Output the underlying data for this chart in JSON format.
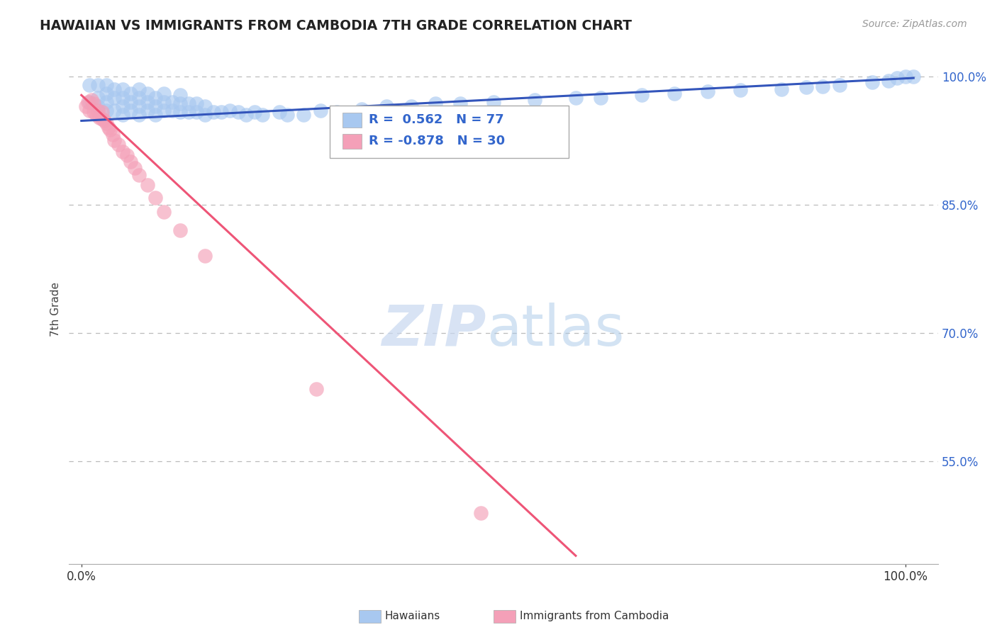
{
  "title": "HAWAIIAN VS IMMIGRANTS FROM CAMBODIA 7TH GRADE CORRELATION CHART",
  "ylabel": "7th Grade",
  "source": "Source: ZipAtlas.com",
  "watermark_zip": "ZIP",
  "watermark_atlas": "atlas",
  "legend_r_blue": "R =  0.562",
  "legend_n_blue": "N = 77",
  "legend_r_pink": "R = -0.878",
  "legend_n_pink": "N = 30",
  "ytick_labels": [
    "55.0%",
    "70.0%",
    "85.0%",
    "100.0%"
  ],
  "ytick_values": [
    0.55,
    0.7,
    0.85,
    1.0
  ],
  "xtick_labels": [
    "0.0%",
    "100.0%"
  ],
  "xtick_values": [
    0.0,
    1.0
  ],
  "blue_color": "#A8C8F0",
  "pink_color": "#F4A0B8",
  "blue_line_color": "#3355BB",
  "pink_line_color": "#EE5577",
  "background_color": "#FFFFFF",
  "grid_color": "#BBBBBB",
  "title_color": "#222222",
  "watermark_zip_color": "#C8D8F0",
  "watermark_atlas_color": "#A8C8E8",
  "legend_text_color": "#3366CC",
  "ytick_color": "#3366CC",
  "blue_scatter_x": [
    0.01,
    0.01,
    0.02,
    0.02,
    0.02,
    0.03,
    0.03,
    0.03,
    0.03,
    0.04,
    0.04,
    0.04,
    0.05,
    0.05,
    0.05,
    0.05,
    0.06,
    0.06,
    0.06,
    0.07,
    0.07,
    0.07,
    0.07,
    0.08,
    0.08,
    0.08,
    0.09,
    0.09,
    0.09,
    0.1,
    0.1,
    0.1,
    0.11,
    0.11,
    0.12,
    0.12,
    0.12,
    0.13,
    0.13,
    0.14,
    0.14,
    0.15,
    0.15,
    0.16,
    0.17,
    0.18,
    0.19,
    0.2,
    0.21,
    0.22,
    0.24,
    0.25,
    0.27,
    0.29,
    0.31,
    0.34,
    0.37,
    0.4,
    0.43,
    0.46,
    0.5,
    0.55,
    0.6,
    0.63,
    0.68,
    0.72,
    0.76,
    0.8,
    0.85,
    0.88,
    0.9,
    0.92,
    0.96,
    0.98,
    0.99,
    1.0,
    1.01
  ],
  "blue_scatter_y": [
    0.97,
    0.99,
    0.965,
    0.975,
    0.99,
    0.96,
    0.97,
    0.98,
    0.99,
    0.96,
    0.975,
    0.985,
    0.955,
    0.965,
    0.975,
    0.985,
    0.96,
    0.97,
    0.98,
    0.955,
    0.965,
    0.975,
    0.985,
    0.96,
    0.97,
    0.98,
    0.955,
    0.965,
    0.975,
    0.96,
    0.97,
    0.98,
    0.96,
    0.97,
    0.958,
    0.968,
    0.978,
    0.958,
    0.968,
    0.958,
    0.968,
    0.955,
    0.965,
    0.958,
    0.958,
    0.96,
    0.958,
    0.955,
    0.958,
    0.955,
    0.958,
    0.955,
    0.955,
    0.96,
    0.958,
    0.962,
    0.965,
    0.965,
    0.968,
    0.968,
    0.97,
    0.972,
    0.975,
    0.975,
    0.978,
    0.98,
    0.982,
    0.984,
    0.985,
    0.987,
    0.988,
    0.99,
    0.993,
    0.995,
    0.998,
    1.0,
    1.0
  ],
  "pink_scatter_x": [
    0.005,
    0.008,
    0.01,
    0.012,
    0.015,
    0.015,
    0.018,
    0.02,
    0.022,
    0.025,
    0.025,
    0.028,
    0.03,
    0.033,
    0.035,
    0.038,
    0.04,
    0.045,
    0.05,
    0.055,
    0.06,
    0.065,
    0.07,
    0.08,
    0.09,
    0.1,
    0.12,
    0.15,
    0.285,
    0.485
  ],
  "pink_scatter_y": [
    0.965,
    0.97,
    0.96,
    0.972,
    0.958,
    0.968,
    0.955,
    0.96,
    0.952,
    0.95,
    0.958,
    0.948,
    0.945,
    0.94,
    0.938,
    0.932,
    0.925,
    0.92,
    0.912,
    0.908,
    0.9,
    0.893,
    0.885,
    0.873,
    0.858,
    0.842,
    0.82,
    0.79,
    0.635,
    0.49
  ],
  "blue_line_x": [
    0.0,
    1.01
  ],
  "blue_line_y": [
    0.948,
    0.998
  ],
  "pink_line_x": [
    0.0,
    0.6
  ],
  "pink_line_y": [
    0.978,
    0.44
  ],
  "xmin": -0.015,
  "xmax": 1.04,
  "ymin": 0.43,
  "ymax": 1.025
}
